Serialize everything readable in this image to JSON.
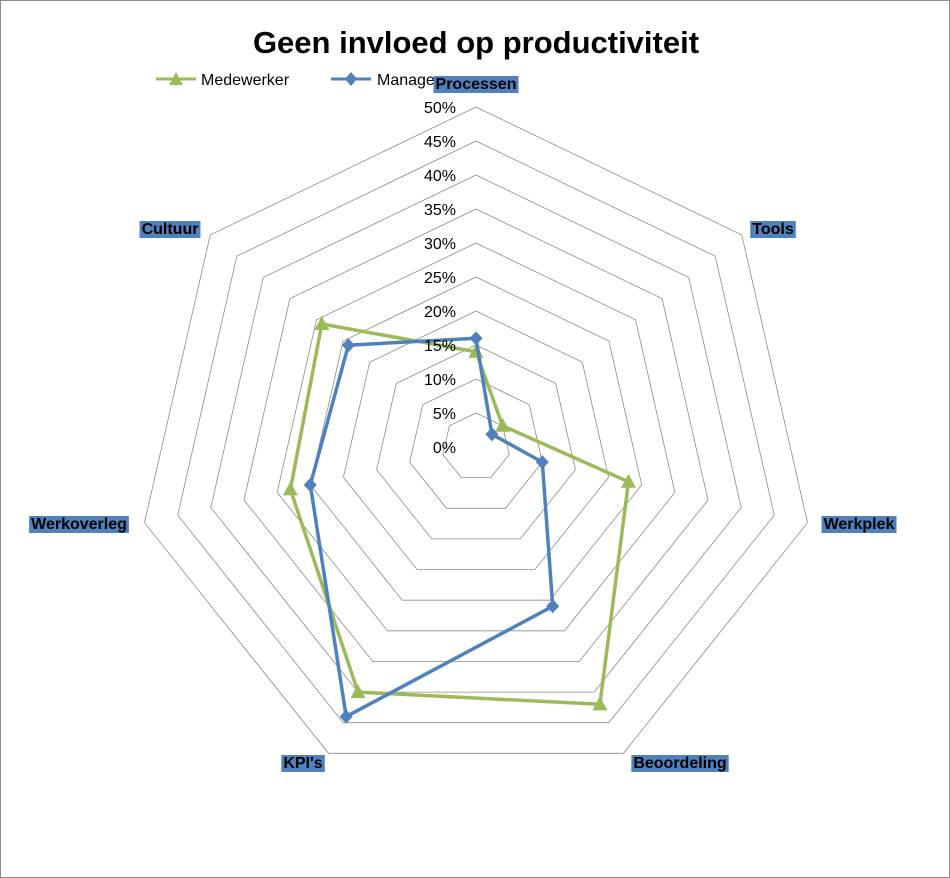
{
  "chart_data": {
    "type": "radar",
    "title": "Geen invloed op productiviteit",
    "categories": [
      "Processen",
      "Tools",
      "Werkplek",
      "Beoordeling",
      "KPI's",
      "Werkoverleg",
      "Cultuur"
    ],
    "ticks": [
      "0%",
      "5%",
      "10%",
      "15%",
      "20%",
      "25%",
      "30%",
      "35%",
      "40%",
      "45%",
      "50%"
    ],
    "rmax": 50,
    "rstep": 5,
    "legend_position": "top-left",
    "series": [
      {
        "name": "Medewerker",
        "values": [
          14,
          5,
          23,
          42,
          40,
          28,
          29
        ],
        "color": "#9BBB59",
        "marker": "triangle"
      },
      {
        "name": "Manager",
        "values": [
          16,
          3,
          10,
          26,
          44,
          25,
          24
        ],
        "color": "#4F81BD",
        "marker": "diamond"
      }
    ],
    "category_label_bg": "#4F81BD",
    "grid": true
  }
}
